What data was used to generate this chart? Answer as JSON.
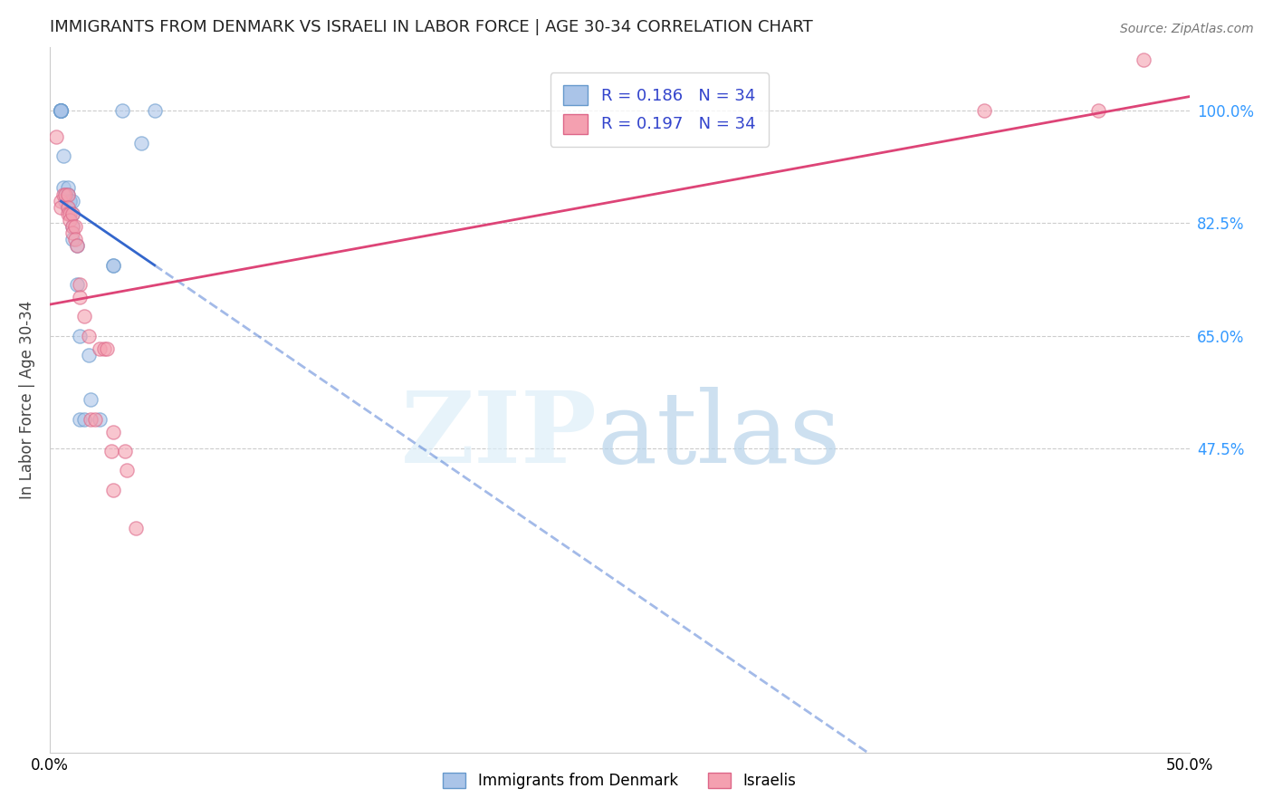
{
  "title": "IMMIGRANTS FROM DENMARK VS ISRAELI IN LABOR FORCE | AGE 30-34 CORRELATION CHART",
  "source": "Source: ZipAtlas.com",
  "ylabel": "In Labor Force | Age 30-34",
  "xlim": [
    0.0,
    0.5
  ],
  "ylim": [
    0.0,
    1.1
  ],
  "xtick_labels": [
    "0.0%",
    "50.0%"
  ],
  "xtick_vals": [
    0.0,
    0.5
  ],
  "ytick_labels": [
    "100.0%",
    "82.5%",
    "65.0%",
    "47.5%"
  ],
  "ytick_vals": [
    1.0,
    0.825,
    0.65,
    0.475
  ],
  "grid_color": "#cccccc",
  "background_color": "#ffffff",
  "denmark_x": [
    0.005,
    0.005,
    0.005,
    0.005,
    0.005,
    0.005,
    0.005,
    0.005,
    0.006,
    0.006,
    0.007,
    0.007,
    0.008,
    0.008,
    0.008,
    0.009,
    0.009,
    0.01,
    0.01,
    0.01,
    0.01,
    0.012,
    0.012,
    0.013,
    0.013,
    0.015,
    0.017,
    0.018,
    0.022,
    0.028,
    0.028,
    0.032,
    0.04,
    0.046
  ],
  "denmark_y": [
    1.0,
    1.0,
    1.0,
    1.0,
    1.0,
    1.0,
    1.0,
    1.0,
    0.93,
    0.88,
    0.86,
    0.87,
    0.88,
    0.87,
    0.85,
    0.86,
    0.86,
    0.86,
    0.84,
    0.82,
    0.8,
    0.79,
    0.73,
    0.65,
    0.52,
    0.52,
    0.62,
    0.55,
    0.52,
    0.76,
    0.76,
    1.0,
    0.95,
    1.0
  ],
  "israeli_x": [
    0.003,
    0.005,
    0.005,
    0.006,
    0.007,
    0.008,
    0.008,
    0.008,
    0.009,
    0.009,
    0.01,
    0.01,
    0.01,
    0.011,
    0.011,
    0.012,
    0.013,
    0.013,
    0.015,
    0.017,
    0.018,
    0.02,
    0.022,
    0.024,
    0.025,
    0.027,
    0.028,
    0.033,
    0.034,
    0.038,
    0.028,
    0.41,
    0.46,
    0.48
  ],
  "israeli_y": [
    0.96,
    0.86,
    0.85,
    0.87,
    0.87,
    0.87,
    0.85,
    0.84,
    0.84,
    0.83,
    0.84,
    0.82,
    0.81,
    0.82,
    0.8,
    0.79,
    0.73,
    0.71,
    0.68,
    0.65,
    0.52,
    0.52,
    0.63,
    0.63,
    0.63,
    0.47,
    0.5,
    0.47,
    0.44,
    0.35,
    0.41,
    1.0,
    1.0,
    1.08
  ],
  "denmark_color": "#aac4e8",
  "danish_marker_edge": "#6699cc",
  "israeli_color": "#f4a0b0",
  "israeli_marker_edge": "#dd6688",
  "denmark_line_color": "#3366cc",
  "israeli_line_color": "#dd4477",
  "denmark_R": 0.186,
  "denmark_N": 34,
  "israeli_R": 0.197,
  "israeli_N": 34,
  "marker_size": 120,
  "marker_alpha": 0.6,
  "line_width": 2.0,
  "legend_text_color": "#3344cc",
  "bottom_legend_entries": [
    "Immigrants from Denmark",
    "Israelis"
  ]
}
